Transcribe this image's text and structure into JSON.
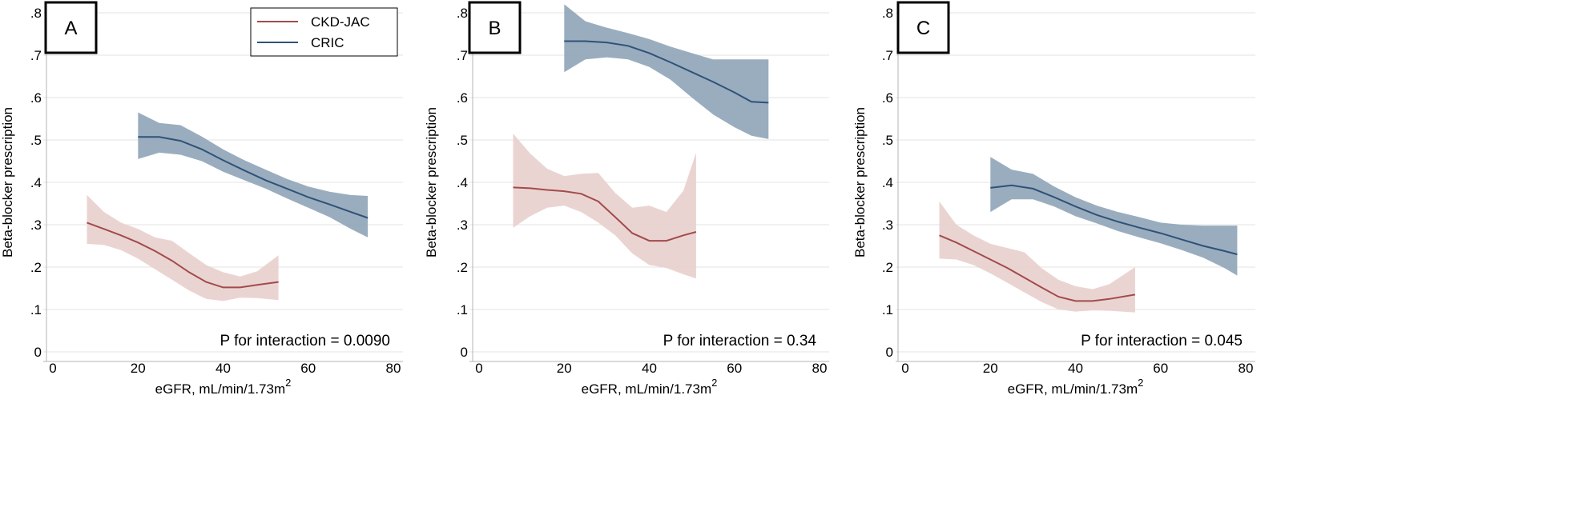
{
  "chart_data": [
    {
      "type": "line",
      "panel_label": "A",
      "xlabel": "eGFR, mL/min/1.73m",
      "xlabel_superscript": "2",
      "ylabel": "Beta-blocker prescription",
      "xlim": [
        0,
        80
      ],
      "ylim": [
        0,
        0.8
      ],
      "xticks": [
        0,
        20,
        40,
        60,
        80
      ],
      "xtick_labels": [
        "0",
        "20",
        "40",
        "60",
        "80"
      ],
      "yticks": [
        0,
        0.1,
        0.2,
        0.3,
        0.4,
        0.5,
        0.6,
        0.7,
        0.8
      ],
      "ytick_labels": [
        "0",
        ".1",
        ".2",
        ".3",
        ".4",
        ".5",
        ".6",
        ".7",
        ".8"
      ],
      "grid": "horizontal",
      "annotation": "P for interaction = 0.0090",
      "legend": {
        "position": "top-right",
        "entries": [
          {
            "label": "CKD-JAC",
            "color": "#a24b4b"
          },
          {
            "label": "CRIC",
            "color": "#2f5277"
          }
        ]
      },
      "series": [
        {
          "name": "CKD-JAC",
          "color": "#a24b4b",
          "band_color": "#e8cfcd",
          "x": [
            8,
            12,
            16,
            20,
            24,
            28,
            32,
            36,
            40,
            44,
            48,
            53
          ],
          "y": [
            0.305,
            0.29,
            0.275,
            0.258,
            0.238,
            0.215,
            0.188,
            0.165,
            0.152,
            0.152,
            0.158,
            0.165
          ],
          "lower": [
            0.255,
            0.252,
            0.24,
            0.22,
            0.195,
            0.17,
            0.145,
            0.125,
            0.12,
            0.128,
            0.127,
            0.122
          ],
          "upper": [
            0.37,
            0.33,
            0.305,
            0.29,
            0.27,
            0.262,
            0.233,
            0.205,
            0.188,
            0.178,
            0.19,
            0.228
          ]
        },
        {
          "name": "CRIC",
          "color": "#2f5277",
          "band_color": "#8fa4b8",
          "x": [
            20,
            25,
            30,
            35,
            40,
            45,
            50,
            55,
            60,
            65,
            70,
            74
          ],
          "y": [
            0.507,
            0.507,
            0.498,
            0.478,
            0.452,
            0.428,
            0.405,
            0.385,
            0.365,
            0.348,
            0.33,
            0.316
          ],
          "lower": [
            0.455,
            0.47,
            0.465,
            0.45,
            0.425,
            0.405,
            0.385,
            0.362,
            0.34,
            0.318,
            0.29,
            0.27
          ],
          "upper": [
            0.565,
            0.54,
            0.535,
            0.508,
            0.478,
            0.452,
            0.43,
            0.408,
            0.39,
            0.378,
            0.37,
            0.368
          ]
        }
      ]
    },
    {
      "type": "line",
      "panel_label": "B",
      "xlabel": "eGFR, mL/min/1.73m",
      "xlabel_superscript": "2",
      "ylabel": "Beta-blocker prescription",
      "xlim": [
        0,
        80
      ],
      "ylim": [
        0,
        0.8
      ],
      "xticks": [
        0,
        20,
        40,
        60,
        80
      ],
      "xtick_labels": [
        "0",
        "20",
        "40",
        "60",
        "80"
      ],
      "yticks": [
        0,
        0.1,
        0.2,
        0.3,
        0.4,
        0.5,
        0.6,
        0.7,
        0.8
      ],
      "ytick_labels": [
        "0",
        ".1",
        ".2",
        ".3",
        ".4",
        ".5",
        ".6",
        ".7",
        ".8"
      ],
      "grid": "horizontal",
      "annotation": "P for interaction = 0.34",
      "series": [
        {
          "name": "CKD-JAC",
          "color": "#a24b4b",
          "band_color": "#e8cfcd",
          "x": [
            8,
            12,
            16,
            20,
            24,
            28,
            32,
            36,
            40,
            44,
            48,
            51
          ],
          "y": [
            0.388,
            0.386,
            0.382,
            0.379,
            0.373,
            0.355,
            0.318,
            0.28,
            0.262,
            0.262,
            0.275,
            0.283
          ],
          "lower": [
            0.293,
            0.32,
            0.34,
            0.345,
            0.33,
            0.305,
            0.275,
            0.232,
            0.205,
            0.198,
            0.183,
            0.173
          ],
          "upper": [
            0.515,
            0.468,
            0.432,
            0.415,
            0.42,
            0.422,
            0.375,
            0.34,
            0.345,
            0.33,
            0.38,
            0.47
          ]
        },
        {
          "name": "CRIC",
          "color": "#2f5277",
          "band_color": "#8fa4b8",
          "x": [
            20,
            25,
            30,
            35,
            40,
            45,
            50,
            55,
            60,
            64,
            68
          ],
          "y": [
            0.733,
            0.733,
            0.73,
            0.722,
            0.705,
            0.683,
            0.66,
            0.637,
            0.612,
            0.59,
            0.588
          ],
          "lower": [
            0.66,
            0.69,
            0.695,
            0.69,
            0.672,
            0.642,
            0.6,
            0.56,
            0.53,
            0.51,
            0.502
          ],
          "upper": [
            0.82,
            0.78,
            0.765,
            0.752,
            0.738,
            0.72,
            0.705,
            0.69,
            0.69,
            0.69,
            0.69
          ]
        }
      ]
    },
    {
      "type": "line",
      "panel_label": "C",
      "xlabel": "eGFR, mL/min/1.73m",
      "xlabel_superscript": "2",
      "ylabel": "Beta-blocker prescription",
      "xlim": [
        0,
        80
      ],
      "ylim": [
        0,
        0.8
      ],
      "xticks": [
        0,
        20,
        40,
        60,
        80
      ],
      "xtick_labels": [
        "0",
        "20",
        "40",
        "60",
        "80"
      ],
      "yticks": [
        0,
        0.1,
        0.2,
        0.3,
        0.4,
        0.5,
        0.6,
        0.7,
        0.8
      ],
      "ytick_labels": [
        "0",
        ".1",
        ".2",
        ".3",
        ".4",
        ".5",
        ".6",
        ".7",
        ".8"
      ],
      "grid": "horizontal",
      "annotation": "P for interaction = 0.045",
      "series": [
        {
          "name": "CKD-JAC",
          "color": "#a24b4b",
          "band_color": "#e8cfcd",
          "x": [
            8,
            12,
            16,
            20,
            24,
            28,
            32,
            36,
            40,
            44,
            48,
            54
          ],
          "y": [
            0.275,
            0.258,
            0.238,
            0.218,
            0.198,
            0.175,
            0.152,
            0.13,
            0.12,
            0.12,
            0.125,
            0.135
          ],
          "lower": [
            0.22,
            0.218,
            0.205,
            0.185,
            0.163,
            0.14,
            0.118,
            0.1,
            0.095,
            0.098,
            0.097,
            0.093
          ],
          "upper": [
            0.355,
            0.3,
            0.275,
            0.255,
            0.245,
            0.235,
            0.198,
            0.17,
            0.155,
            0.148,
            0.16,
            0.2
          ]
        },
        {
          "name": "CRIC",
          "color": "#2f5277",
          "band_color": "#8fa4b8",
          "x": [
            20,
            25,
            30,
            35,
            40,
            45,
            50,
            55,
            60,
            65,
            70,
            75,
            78
          ],
          "y": [
            0.387,
            0.393,
            0.385,
            0.365,
            0.343,
            0.323,
            0.307,
            0.293,
            0.28,
            0.265,
            0.25,
            0.238,
            0.23
          ],
          "lower": [
            0.33,
            0.36,
            0.36,
            0.343,
            0.32,
            0.303,
            0.285,
            0.27,
            0.256,
            0.24,
            0.222,
            0.198,
            0.18
          ],
          "upper": [
            0.46,
            0.43,
            0.42,
            0.39,
            0.365,
            0.345,
            0.33,
            0.318,
            0.305,
            0.3,
            0.298,
            0.298,
            0.298
          ]
        }
      ]
    }
  ]
}
